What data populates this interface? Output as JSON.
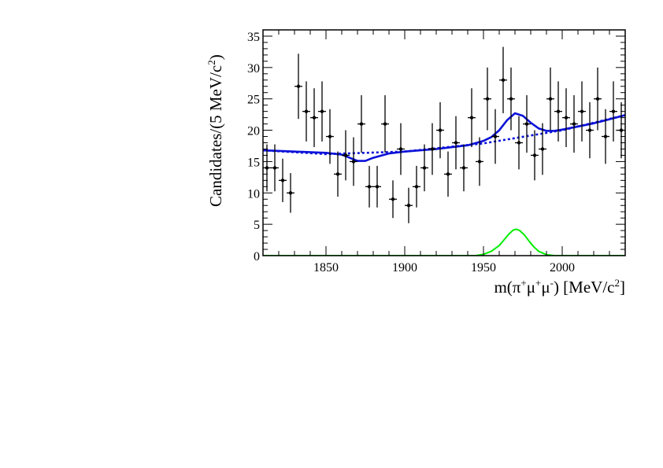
{
  "chart_data": {
    "type": "scatter",
    "xlabel_parts": [
      "m(π",
      "+",
      "μ",
      "+",
      "μ",
      "-",
      ") [MeV/c",
      "2",
      "]"
    ],
    "ylabel_parts": [
      "Candidates/(5 MeV/c",
      "2",
      ")"
    ],
    "xlim": [
      1810,
      2040
    ],
    "ylim": [
      0,
      36
    ],
    "x_ticks": [
      1850,
      1900,
      1950,
      2000
    ],
    "y_ticks": [
      0,
      5,
      10,
      15,
      20,
      25,
      30,
      35
    ],
    "bin_width": 5,
    "colors": {
      "data": "#000000",
      "total_fit": "#0b12d8",
      "background": "#0b12d8",
      "signal": "#00ee00"
    },
    "series": [
      {
        "kind": "points_with_errors",
        "x": [
          1812.5,
          1817.5,
          1822.5,
          1827.5,
          1832.5,
          1837.5,
          1842.5,
          1847.5,
          1852.5,
          1857.5,
          1862.5,
          1867.5,
          1872.5,
          1877.5,
          1882.5,
          1887.5,
          1892.5,
          1897.5,
          1902.5,
          1907.5,
          1912.5,
          1917.5,
          1922.5,
          1927.5,
          1932.5,
          1937.5,
          1942.5,
          1947.5,
          1952.5,
          1957.5,
          1962.5,
          1967.5,
          1972.5,
          1977.5,
          1982.5,
          1987.5,
          1992.5,
          1997.5,
          2002.5,
          2007.5,
          2012.5,
          2017.5,
          2022.5,
          2027.5,
          2032.5,
          2037.5
        ],
        "y": [
          14,
          14,
          12,
          10,
          27,
          23,
          22,
          23,
          19,
          13,
          16,
          15,
          21,
          11,
          11,
          21,
          9,
          17,
          8,
          11,
          14,
          17,
          20,
          13,
          18,
          14,
          22,
          15,
          25,
          19,
          28,
          25,
          18,
          21,
          16,
          17,
          25,
          23,
          22,
          21,
          23,
          20,
          25,
          19,
          23,
          20
        ]
      },
      {
        "kind": "line",
        "style": "solid",
        "x": [
          1810,
          1830,
          1850,
          1860,
          1865,
          1870,
          1875,
          1880,
          1890,
          1900,
          1920,
          1940,
          1950,
          1955,
          1960,
          1965,
          1970,
          1975,
          1980,
          1985,
          1990,
          1995,
          2000,
          2020,
          2040
        ],
        "y": [
          16.8,
          16.6,
          16.4,
          16.1,
          15.6,
          15.1,
          15.1,
          15.6,
          16.3,
          16.6,
          17.0,
          17.6,
          18.3,
          18.9,
          20.0,
          21.6,
          22.7,
          22.3,
          21.2,
          20.3,
          19.9,
          19.9,
          20.1,
          21.1,
          22.4
        ]
      },
      {
        "kind": "line",
        "style": "dotted",
        "x": [
          1810,
          1850,
          1900,
          1950,
          2000,
          2040
        ],
        "y": [
          16.8,
          16.2,
          16.6,
          17.9,
          20.0,
          22.4
        ]
      },
      {
        "kind": "line",
        "style": "solid",
        "role": "signal",
        "x": [
          1810,
          1945,
          1950,
          1955,
          1960,
          1963,
          1966,
          1969,
          1971,
          1973,
          1976,
          1979,
          1982,
          1985,
          1990,
          1995,
          2040
        ],
        "y": [
          0,
          0,
          0.2,
          0.7,
          1.6,
          2.5,
          3.4,
          4.1,
          4.2,
          4.0,
          3.3,
          2.3,
          1.4,
          0.7,
          0.15,
          0,
          0
        ]
      }
    ]
  }
}
